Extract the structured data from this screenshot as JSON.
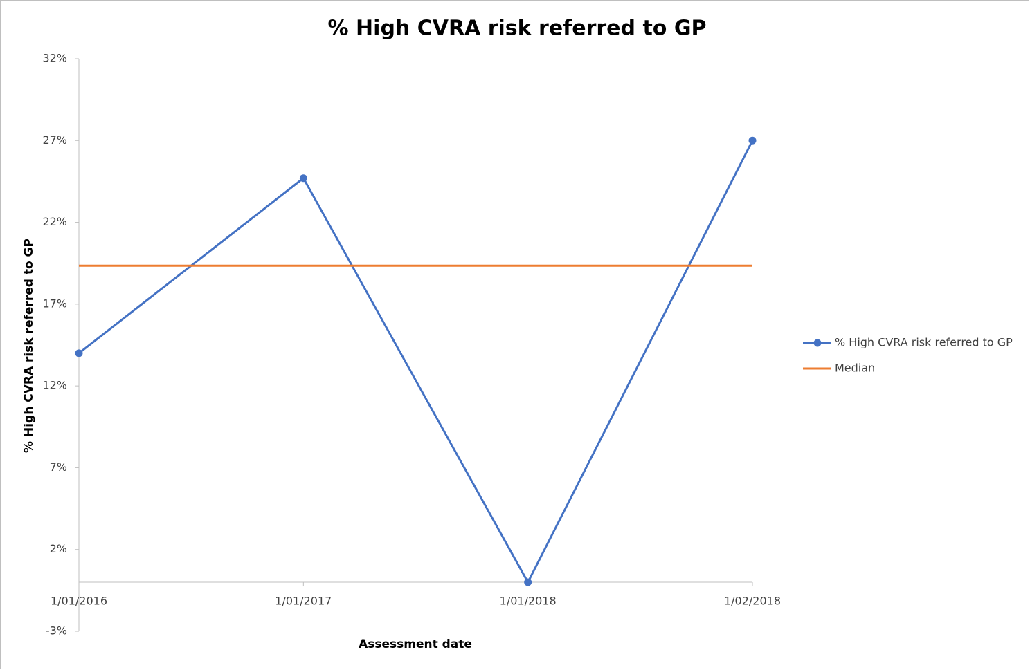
{
  "chart_data": {
    "type": "line",
    "title": "% High CVRA risk referred to GP",
    "x_label": "Assessment date",
    "y_label": "% High CVRA risk referred to GP",
    "categories": [
      "1/01/2016",
      "1/01/2017",
      "1/01/2018",
      "1/02/2018"
    ],
    "series": [
      {
        "name": "% High CVRA risk referred to GP",
        "color": "#4472c4",
        "values": [
          14,
          24.7,
          0,
          27
        ],
        "markers": true
      },
      {
        "name": "Median",
        "color": "#ed7d31",
        "values": [
          19.35,
          19.35,
          19.35,
          19.35
        ],
        "markers": false
      }
    ],
    "ylim": [
      -3,
      32
    ],
    "yticks": [
      {
        "value": -3,
        "label": "-3%"
      },
      {
        "value": 2,
        "label": "2%"
      },
      {
        "value": 7,
        "label": "7%"
      },
      {
        "value": 12,
        "label": "12%"
      },
      {
        "value": 17,
        "label": "17%"
      },
      {
        "value": 22,
        "label": "22%"
      },
      {
        "value": 27,
        "label": "27%"
      },
      {
        "value": 32,
        "label": "32%"
      }
    ],
    "legend": "right"
  }
}
